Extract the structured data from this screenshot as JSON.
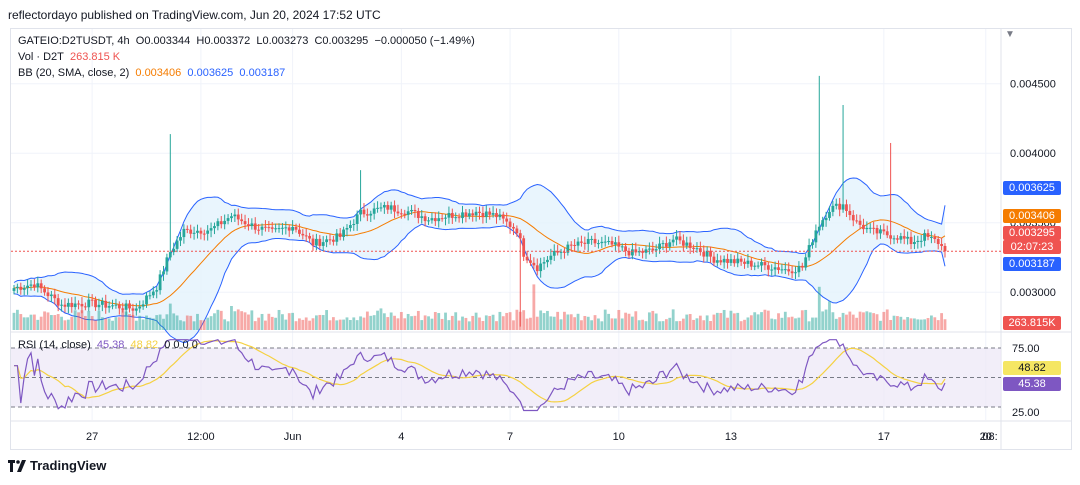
{
  "header": {
    "published": "reflectordayo published on TradingView.com, Jun 20, 2024 17:52 UTC"
  },
  "legend": {
    "symbol": "GATEIO:D2TUSDT, 4h",
    "o_label": "O",
    "o": "0.003344",
    "h_label": "H",
    "h": "0.003372",
    "l_label": "L",
    "l": "0.003273",
    "c_label": "C",
    "c": "0.003295",
    "change": "−0.000050 (−1.49%)",
    "vol_label": "Vol · D2T",
    "vol": "263.815 K",
    "bb_label": "BB (20, SMA, close, 2)",
    "bb_basis": "0.003406",
    "bb_upper": "0.003625",
    "bb_lower": "0.003187",
    "rsi_label": "RSI (14, close)",
    "rsi": "45.38",
    "rsi_ma": "48.82",
    "rsi_extra": "0 0 0 0"
  },
  "colors": {
    "up": "#26a69a",
    "down": "#ef5350",
    "bb_basis": "#f57c00",
    "bb_band": "#2962ff",
    "bb_fill": "#e3f2fd",
    "rsi_line": "#7e57c2",
    "rsi_ma": "#f5d142",
    "rsi_fill": "#ede7f6",
    "neutral": "#131722"
  },
  "price_axis": {
    "ticks": [
      "0.004500",
      "0.004000",
      "0.003500",
      "0.003000"
    ],
    "tags": {
      "upper": "0.003625",
      "basis": "0.003406",
      "price": "0.003295",
      "countdown": "02:07:23",
      "lower": "0.003187",
      "volume": "263.815K"
    }
  },
  "rsi_axis": {
    "ticks": [
      "75.00",
      "25.00"
    ],
    "tags": {
      "ma": "48.82",
      "rsi": "45.38"
    }
  },
  "time_axis": {
    "labels": [
      "27",
      "12:00",
      "Jun",
      "4",
      "7",
      "10",
      "13",
      "17",
      "20",
      "08:"
    ]
  },
  "footer": {
    "brand": "TradingView"
  },
  "chart_data": {
    "type": "candlestick",
    "symbol": "GATEIO:D2TUSDT",
    "interval": "4h",
    "ylim": [
      0.0028,
      0.0048
    ],
    "rsi_levels": [
      75,
      50,
      25
    ],
    "last": {
      "open": 0.003344,
      "high": 0.003372,
      "low": 0.003273,
      "close": 0.003295,
      "volume_k": 263.815,
      "rsi": 45.38,
      "rsi_ma": 48.82
    },
    "bollinger_last": {
      "basis": 0.003406,
      "upper": 0.003625,
      "lower": 0.003187
    },
    "close_path_points": [
      [
        0,
        0.00303
      ],
      [
        6,
        0.00306
      ],
      [
        14,
        0.00291
      ],
      [
        22,
        0.00292
      ],
      [
        30,
        0.0029
      ],
      [
        36,
        0.00288
      ],
      [
        42,
        0.00304
      ],
      [
        46,
        0.00329
      ],
      [
        50,
        0.00344
      ],
      [
        58,
        0.00345
      ],
      [
        64,
        0.00355
      ],
      [
        70,
        0.00348
      ],
      [
        76,
        0.00343
      ],
      [
        82,
        0.00348
      ],
      [
        88,
        0.00335
      ],
      [
        96,
        0.0034
      ],
      [
        102,
        0.00357
      ],
      [
        110,
        0.00361
      ],
      [
        116,
        0.00358
      ],
      [
        122,
        0.00353
      ],
      [
        130,
        0.00356
      ],
      [
        136,
        0.00358
      ],
      [
        142,
        0.00355
      ],
      [
        148,
        0.00345
      ],
      [
        150,
        0.00328
      ],
      [
        154,
        0.00318
      ],
      [
        158,
        0.00326
      ],
      [
        164,
        0.00333
      ],
      [
        170,
        0.00336
      ],
      [
        176,
        0.00334
      ],
      [
        182,
        0.00328
      ],
      [
        188,
        0.0033
      ],
      [
        194,
        0.00338
      ],
      [
        200,
        0.00333
      ],
      [
        206,
        0.00324
      ],
      [
        212,
        0.00322
      ],
      [
        218,
        0.0032
      ],
      [
        224,
        0.00318
      ],
      [
        228,
        0.00316
      ],
      [
        232,
        0.00318
      ],
      [
        236,
        0.00345
      ],
      [
        240,
        0.0036
      ],
      [
        244,
        0.00363
      ],
      [
        248,
        0.0035
      ],
      [
        252,
        0.00344
      ],
      [
        256,
        0.00342
      ],
      [
        260,
        0.0034
      ],
      [
        264,
        0.00336
      ],
      [
        268,
        0.0034
      ],
      [
        272,
        0.00336
      ],
      [
        274,
        0.003295
      ]
    ]
  }
}
